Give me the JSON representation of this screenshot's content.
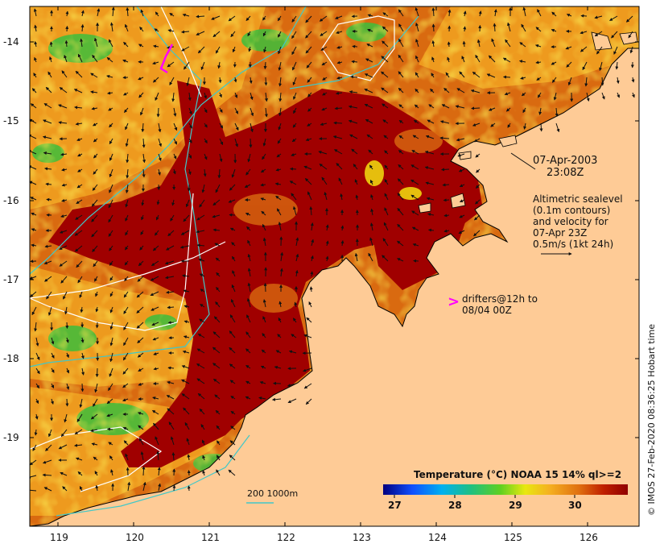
{
  "date_label": "07-Apr-2003",
  "time_label": "23:08Z",
  "altimetry_note": [
    "Altimetric sealevel",
    "(0.1m contours)",
    "and velocity for",
    "07-Apr 23Z",
    "0.5m/s (1kt 24h)"
  ],
  "drifters_note": [
    "drifters@12h to",
    "08/04 00Z"
  ],
  "drifter_marker": ">",
  "credit": "© IMOS 27-Feb-2020 08:36:25 Hobart time",
  "legend_title": "Temperature (°C) NOAA 15 14% ql>=2",
  "colorbar_labels": [
    "27",
    "28",
    "29",
    "30"
  ],
  "depth_legend": "200  1000m",
  "x_ticks": [
    "119",
    "120",
    "121",
    "122",
    "123",
    "124",
    "125",
    "126"
  ],
  "y_ticks": [
    "-14",
    "-15",
    "-16",
    "-17",
    "-18",
    "-19"
  ],
  "colors": {
    "land": "#fecb96",
    "sst_hot": "#a00000",
    "sst_warm": "#d96a10",
    "sst_mid": "#f0a020",
    "sst_yellow": "#f3e010",
    "sst_green": "#3cbe3c",
    "contour_cyan": "#40c8c8",
    "contour_white": "#ffffff",
    "drifter": "#ff00ff"
  }
}
